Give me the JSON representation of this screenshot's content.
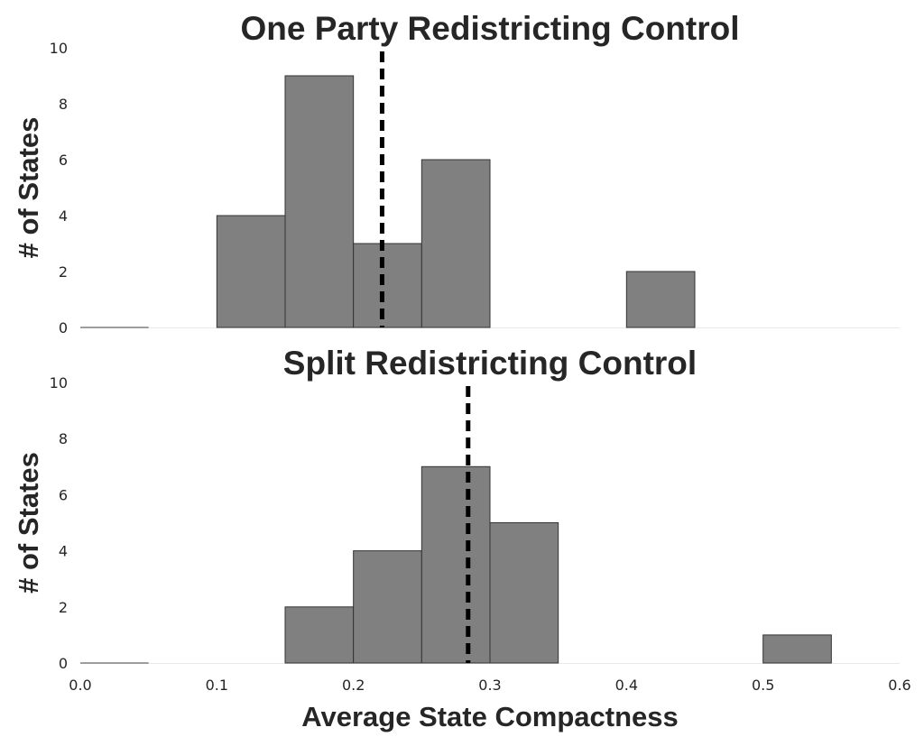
{
  "chart_data": [
    {
      "type": "bar",
      "title": "One Party Redistricting Control",
      "ylabel": "# of States",
      "xlabel": "",
      "xlim": [
        0.0,
        0.6
      ],
      "ylim": [
        0,
        10
      ],
      "yticks": [
        "0",
        "2",
        "4",
        "6",
        "8",
        "10"
      ],
      "xticks": [],
      "bin_width": 0.05,
      "bins": [
        {
          "x": 0.0,
          "value": 0
        },
        {
          "x": 0.1,
          "value": 4
        },
        {
          "x": 0.15,
          "value": 9
        },
        {
          "x": 0.2,
          "value": 3
        },
        {
          "x": 0.25,
          "value": 6
        },
        {
          "x": 0.4,
          "value": 2
        }
      ],
      "mean_line_x": 0.221,
      "grid": false
    },
    {
      "type": "bar",
      "title": "Split Redistricting Control",
      "ylabel": "# of States",
      "xlabel": "Average State Compactness",
      "xlim": [
        0.0,
        0.6
      ],
      "ylim": [
        0,
        10
      ],
      "yticks": [
        "0",
        "2",
        "4",
        "6",
        "8",
        "10"
      ],
      "xticks": [
        "0.0",
        "0.1",
        "0.2",
        "0.3",
        "0.4",
        "0.5",
        "0.6"
      ],
      "bin_width": 0.05,
      "bins": [
        {
          "x": 0.0,
          "value": 0
        },
        {
          "x": 0.15,
          "value": 2
        },
        {
          "x": 0.2,
          "value": 4
        },
        {
          "x": 0.25,
          "value": 7
        },
        {
          "x": 0.3,
          "value": 5
        },
        {
          "x": 0.5,
          "value": 1
        }
      ],
      "mean_line_x": 0.284,
      "grid": false
    }
  ]
}
